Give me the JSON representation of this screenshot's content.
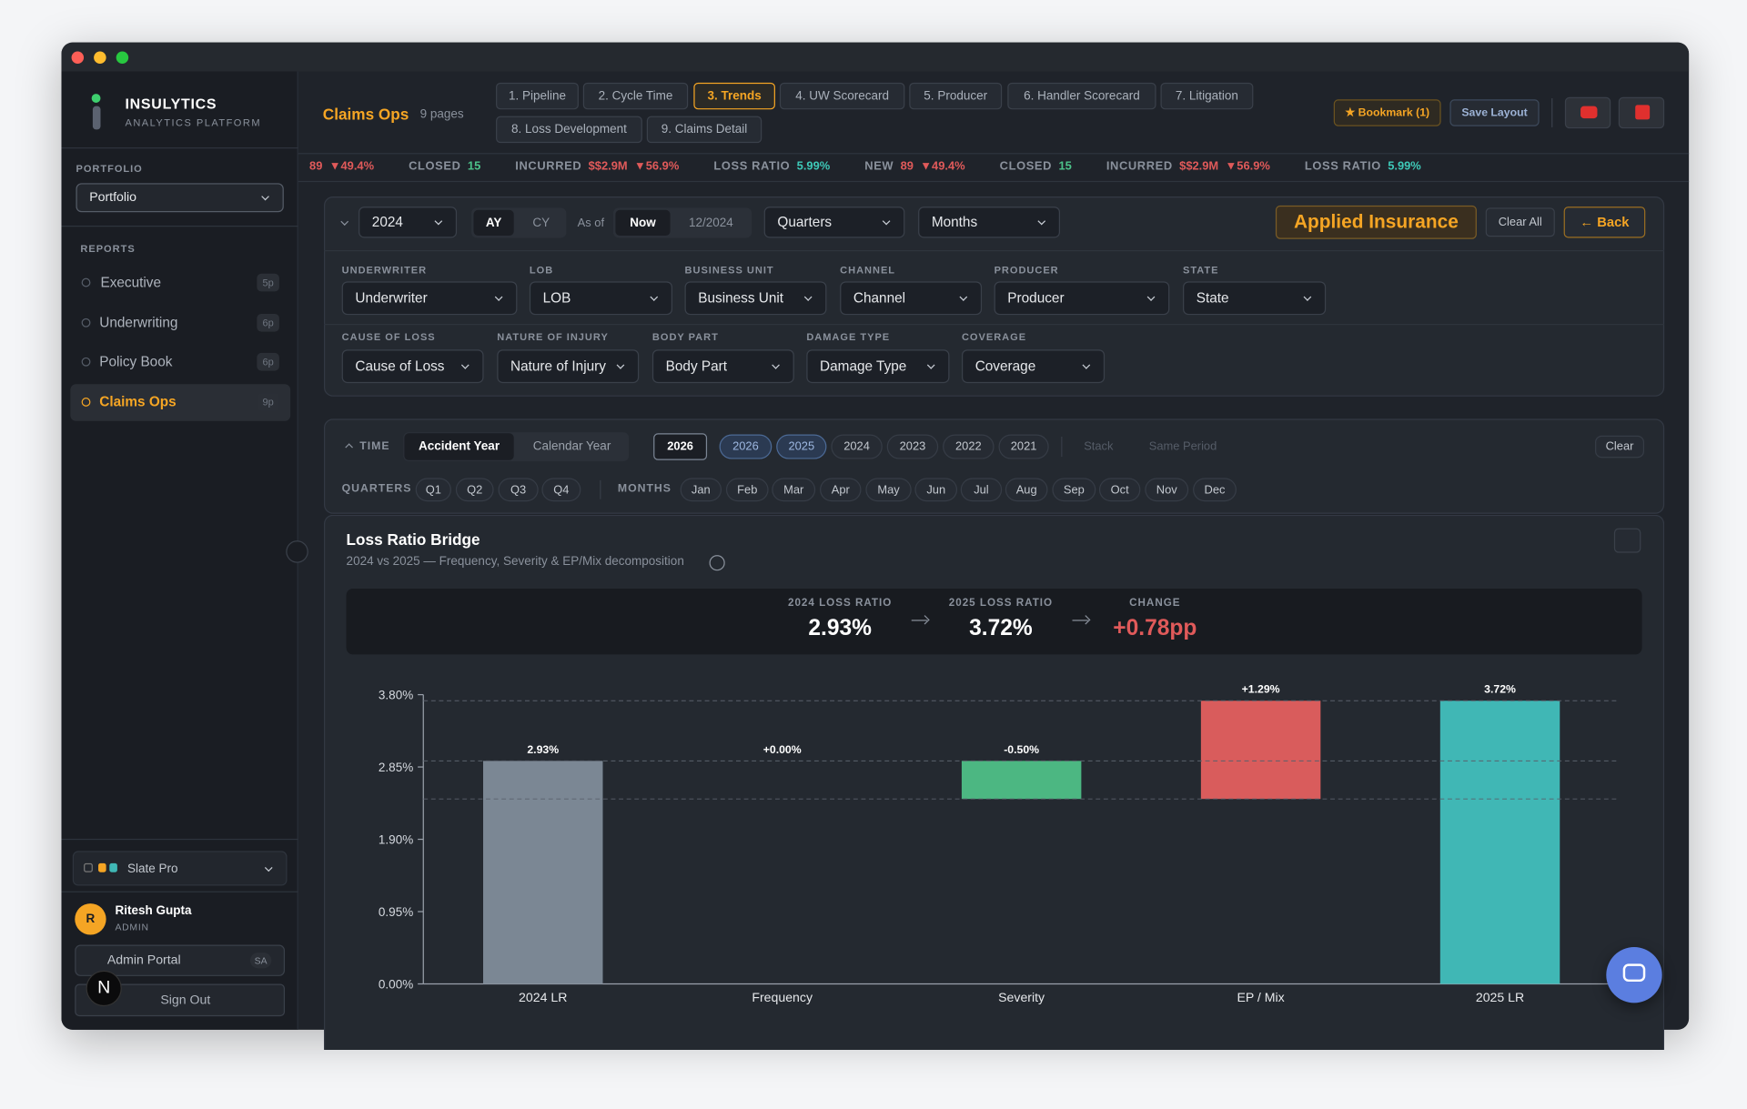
{
  "app": {
    "brand": "INSULYTICS",
    "tagline": "ANALYTICS PLATFORM"
  },
  "sidebar": {
    "portfolio_label": "PORTFOLIO",
    "portfolio": "Portfolio",
    "reports_label": "REPORTS",
    "reports": [
      {
        "name": "Executive",
        "pages": "5p",
        "active": false
      },
      {
        "name": "Underwriting",
        "pages": "6p",
        "active": false
      },
      {
        "name": "Policy Book",
        "pages": "6p",
        "active": false
      },
      {
        "name": "Claims Ops",
        "pages": "9p",
        "active": true
      }
    ],
    "theme": "Slate Pro",
    "user": {
      "initial": "R",
      "name": "Ritesh Gupta",
      "role": "ADMIN"
    },
    "admin_portal": "Admin Portal",
    "admin_badge": "SA",
    "sign_out": "Sign Out",
    "dev_badge": "N"
  },
  "header": {
    "title": "Claims Ops",
    "page_count": "9 pages",
    "tabs": [
      "1. Pipeline",
      "2. Cycle Time",
      "3. Trends",
      "4. UW Scorecard",
      "5. Producer",
      "6. Handler Scorecard",
      "7. Litigation",
      "8. Loss Development",
      "9. Claims Detail"
    ],
    "active_tab": 2,
    "bookmark": "★ Bookmark (1)",
    "save_layout": "Save Layout"
  },
  "ticker": [
    {
      "value": "89",
      "change": "▼49.4%",
      "tone": "down"
    },
    {
      "label": "CLOSED",
      "value": "15",
      "tone": "up"
    },
    {
      "label": "INCURRED",
      "value": "$$2.9M",
      "change": "▼56.9%",
      "tone": "down"
    },
    {
      "label": "LOSS RATIO",
      "value": "5.99%",
      "tone": "ratio"
    },
    {
      "label": "NEW",
      "value": "89",
      "change": "▼49.4%",
      "tone": "down"
    },
    {
      "label": "CLOSED",
      "value": "15",
      "tone": "up"
    },
    {
      "label": "INCURRED",
      "value": "$$2.9M",
      "change": "▼56.9%",
      "tone": "down"
    },
    {
      "label": "LOSS RATIO",
      "value": "5.99%",
      "tone": "ratio"
    }
  ],
  "filters": {
    "year": "2024",
    "basis": [
      "AY",
      "CY"
    ],
    "as_of": "As of",
    "as_of_options": [
      "Now",
      "12/2024"
    ],
    "quarters": "Quarters",
    "months": "Months",
    "company": "Applied Insurance",
    "clear_all": "Clear All",
    "back": "← Back",
    "fields": [
      {
        "label": "UNDERWRITER",
        "value": "Underwriter"
      },
      {
        "label": "LOB",
        "value": "LOB"
      },
      {
        "label": "BUSINESS UNIT",
        "value": "Business Unit"
      },
      {
        "label": "CHANNEL",
        "value": "Channel"
      },
      {
        "label": "PRODUCER",
        "value": "Producer"
      },
      {
        "label": "STATE",
        "value": "State"
      },
      {
        "label": "CAUSE OF LOSS",
        "value": "Cause of Loss"
      },
      {
        "label": "NATURE OF INJURY",
        "value": "Nature of Injury"
      },
      {
        "label": "BODY PART",
        "value": "Body Part"
      },
      {
        "label": "DAMAGE TYPE",
        "value": "Damage Type"
      },
      {
        "label": "COVERAGE",
        "value": "Coverage"
      }
    ]
  },
  "time": {
    "label": "TIME",
    "modes": [
      "Accident Year",
      "Calendar Year"
    ],
    "years": [
      "2026",
      "2026",
      "2025",
      "2024",
      "2023",
      "2022",
      "2021"
    ],
    "selected_years": [
      1,
      2
    ],
    "stack": "Stack",
    "same_period": "Same Period",
    "clear": "Clear",
    "quarters_label": "QUARTERS",
    "quarters": [
      "Q1",
      "Q2",
      "Q3",
      "Q4"
    ],
    "months_label": "MONTHS",
    "months": [
      "Jan",
      "Feb",
      "Mar",
      "Apr",
      "May",
      "Jun",
      "Jul",
      "Aug",
      "Sep",
      "Oct",
      "Nov",
      "Dec"
    ]
  },
  "panel": {
    "title": "Loss Ratio Bridge",
    "subtitle": "2024 vs 2025 — Frequency, Severity & EP/Mix decomposition",
    "kpis": [
      {
        "label": "2024 LOSS RATIO",
        "value": "2.93%"
      },
      {
        "label": "2025 LOSS RATIO",
        "value": "3.72%"
      },
      {
        "label": "CHANGE",
        "value": "+0.78pp"
      }
    ]
  },
  "chart_data": {
    "type": "waterfall",
    "categories": [
      "2024 LR",
      "Frequency",
      "Severity",
      "EP / Mix",
      "2025 LR"
    ],
    "values": [
      2.93,
      0.0,
      -0.5,
      1.29,
      3.72
    ],
    "value_labels": [
      "2.93%",
      "+0.00%",
      "-0.50%",
      "+1.29%",
      "3.72%"
    ],
    "measure": [
      "absolute",
      "relative",
      "relative",
      "relative",
      "absolute"
    ],
    "colors": [
      "#7b8794",
      "#4cb782",
      "#4cb782",
      "#d95c5c",
      "#40b7b5"
    ],
    "ylim": [
      0,
      3.8
    ],
    "yticks": [
      {
        "value": 0,
        "label": "0.00%"
      },
      {
        "value": 0.95,
        "label": "0.95%"
      },
      {
        "value": 1.9,
        "label": "1.90%"
      },
      {
        "value": 2.85,
        "label": "2.85%"
      },
      {
        "value": 3.8,
        "label": "3.80%"
      }
    ],
    "connectors": true
  }
}
